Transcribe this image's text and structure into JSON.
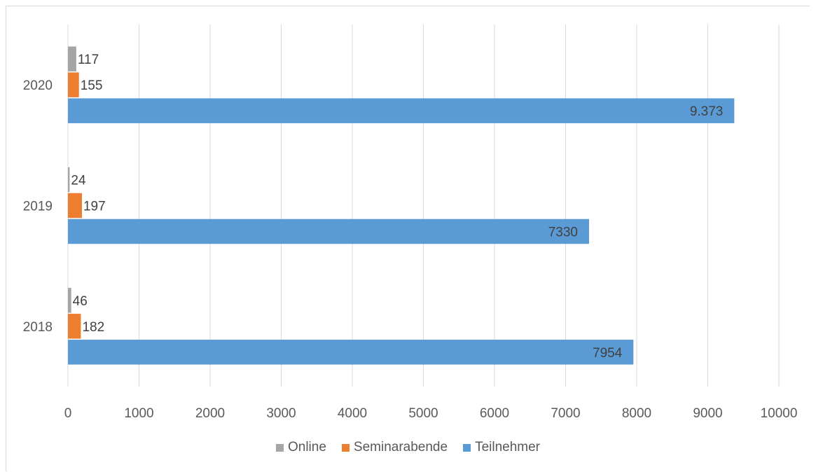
{
  "chart_data": {
    "type": "bar",
    "orientation": "horizontal",
    "title": "",
    "categories": [
      "2018",
      "2019",
      "2020"
    ],
    "series": [
      {
        "name": "Teilnehmer",
        "values": [
          7954,
          7330,
          9373
        ],
        "labels": [
          "7954",
          "7330",
          "9.373"
        ],
        "color": "#5b9bd5"
      },
      {
        "name": "Seminarabende",
        "values": [
          182,
          197,
          155
        ],
        "labels": [
          "182",
          "197",
          "155"
        ],
        "color": "#ed7d31"
      },
      {
        "name": "Online",
        "values": [
          46,
          24,
          117
        ],
        "labels": [
          "46",
          "24",
          "117"
        ],
        "color": "#a5a5a5"
      }
    ],
    "xlim": [
      0,
      10000
    ],
    "xticks": [
      "0",
      "1000",
      "2000",
      "3000",
      "4000",
      "5000",
      "6000",
      "7000",
      "8000",
      "9000",
      "10000"
    ],
    "grid": true,
    "legend_position": "bottom",
    "legend_order": [
      "Online",
      "Seminarabende",
      "Teilnehmer"
    ]
  }
}
